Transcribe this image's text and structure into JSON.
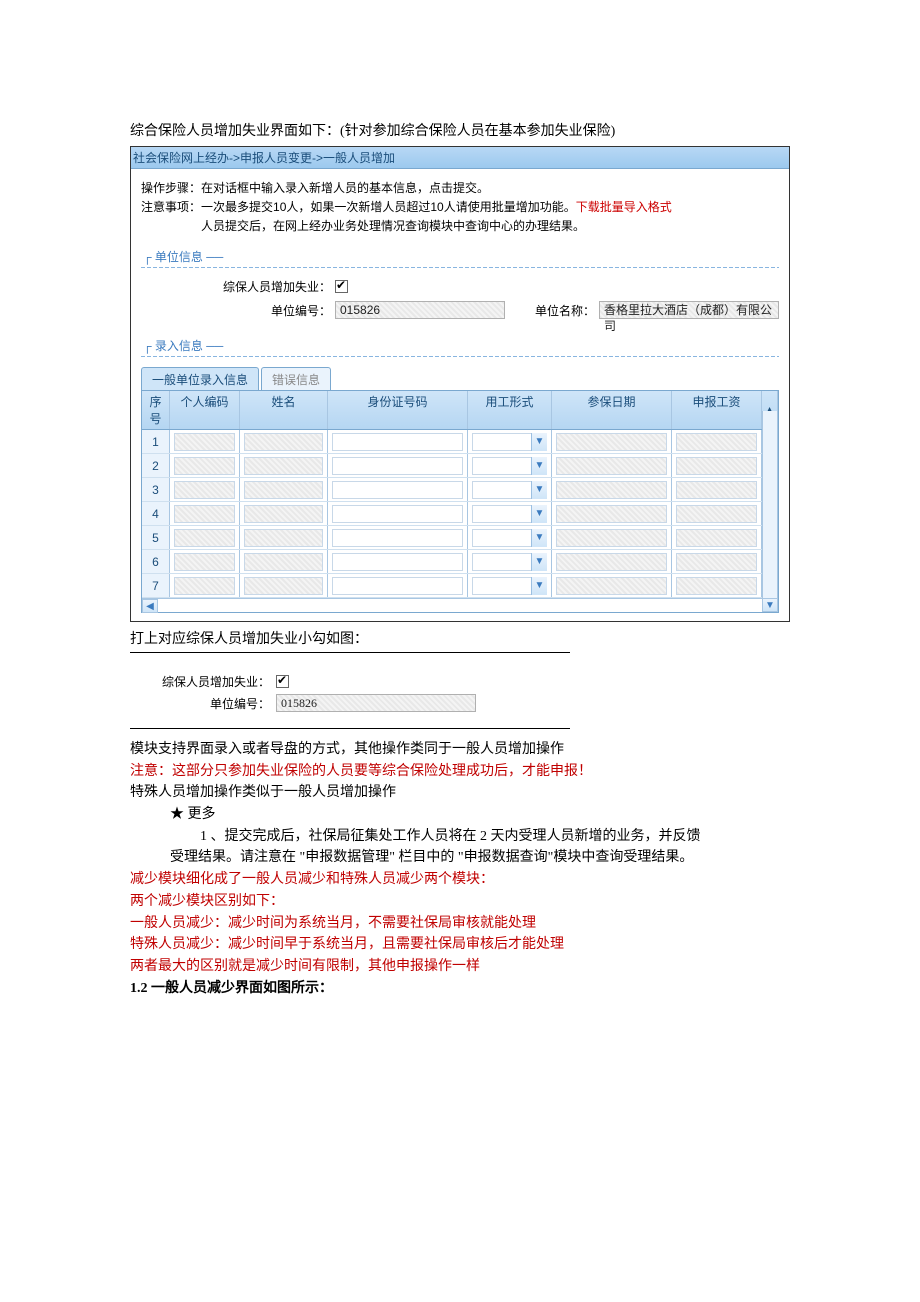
{
  "intro": "综合保险人员增加失业界面如下：(针对参加综合保险人员在基本参加失业保险)",
  "scr1": {
    "breadcrumb": "社会保险网上经办->申报人员变更->一般人员增加",
    "op_label": "操作步骤：",
    "op_text": "在对话框中输入录入新增人员的基本信息，点击提交。",
    "note_label": "注意事项：",
    "note_line1": "一次最多提交10人，如果一次新增人员超过10人请使用批量增加功能。",
    "download_link": "下载批量导入格式",
    "note_line2": "人员提交后，在网上经办业务处理情况查询模块中查询中心的办理结果。",
    "unit_legend": "单位信息",
    "chk_label": "综保人员增加失业：",
    "unit_code_label": "单位编号：",
    "unit_code_value": "015826",
    "unit_name_label": "单位名称：",
    "unit_name_value": "香格里拉大酒店（成都）有限公司",
    "entry_legend": "录入信息",
    "tab_active": "一般单位录入信息",
    "tab_inactive": "错误信息",
    "headers": {
      "seq": "序号",
      "code": "个人编码",
      "name": "姓名",
      "id": "身份证号码",
      "emp": "用工形式",
      "date": "参保日期",
      "wage": "申报工资"
    },
    "rows": [
      "1",
      "2",
      "3",
      "4",
      "5",
      "6",
      "7"
    ],
    "colors": {
      "header_grad_top": "#cfe5f8",
      "header_grad_bot": "#b5d6f2",
      "breadcrumb_top": "#b8d8f5",
      "breadcrumb_bot": "#9cc9ee",
      "border": "#7aa8cf",
      "accent_text": "#1a4d7a",
      "link_red": "#c00"
    }
  },
  "caption1": "打上对应综保人员增加失业小勾如图：",
  "scr2": {
    "chk_label": "综保人员增加失业：",
    "code_label": "单位编号：",
    "code_value": "015826"
  },
  "text": {
    "p1": "模块支持界面录入或者导盘的方式，其他操作类同于一般人员增加操作",
    "p2": "注意：这部分只参加失业保险的人员要等综合保险处理成功后，才能申报！",
    "p3": "特殊人员增加操作类似于一般人员增加操作",
    "star": "★ 更多",
    "num1": "1 、提交完成后，社保局征集处工作人员将在 2 天内受理人员新增的业务，并反馈",
    "num1b": "受理结果。请注意在 \"申报数据管理\" 栏目中的 \"申报数据查询\"模块中查询受理结果。",
    "r1": "减少模块细化成了一般人员减少和特殊人员减少两个模块：",
    "r2": "两个减少模块区别如下：",
    "r3": "一般人员减少：减少时间为系统当月，不需要社保局审核就能处理",
    "r4": "特殊人员减少：减少时间早于系统当月，且需要社保局审核后才能处理",
    "r5": "两者最大的区别就是减少时间有限制，其他申报操作一样",
    "h2": "1.2 一般人员减少界面如图所示："
  },
  "colors": {
    "body_red": "#c00000",
    "black": "#000000",
    "white": "#ffffff"
  }
}
